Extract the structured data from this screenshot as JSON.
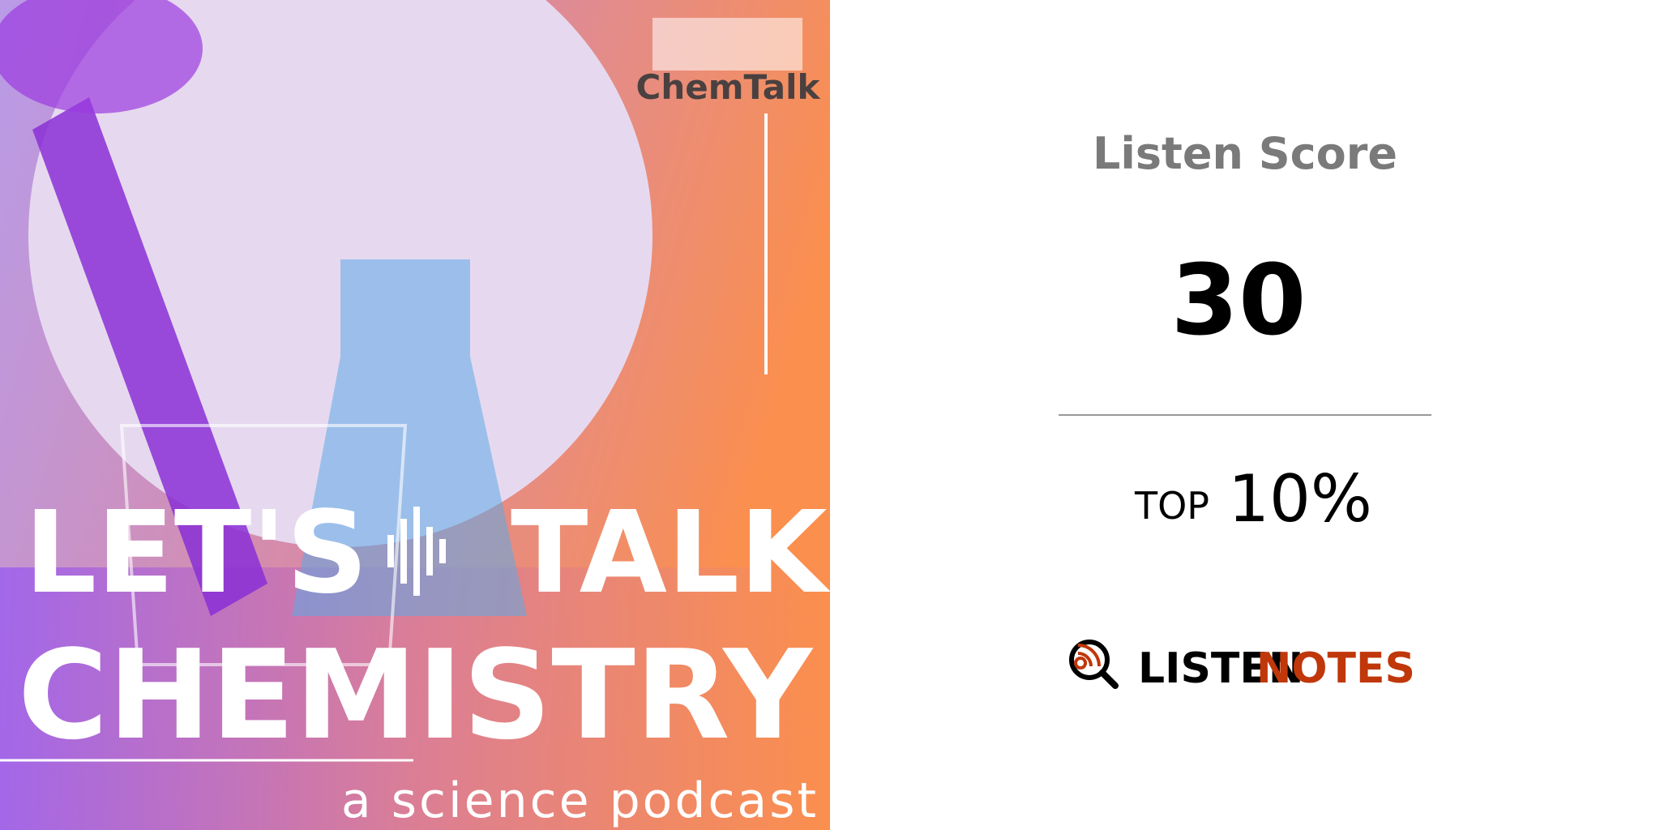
{
  "artwork": {
    "brand": "ChemTalk",
    "title_line1_left": "LET'S",
    "title_line1_right": "TALK",
    "title_line2": "CHEMISTRY",
    "subtitle": "a science podcast"
  },
  "score": {
    "label": "Listen Score",
    "value": 30,
    "rank_prefix": "TOP",
    "rank": "10%"
  },
  "logo": {
    "word1": "LISTEN",
    "word2": "NOTES"
  }
}
